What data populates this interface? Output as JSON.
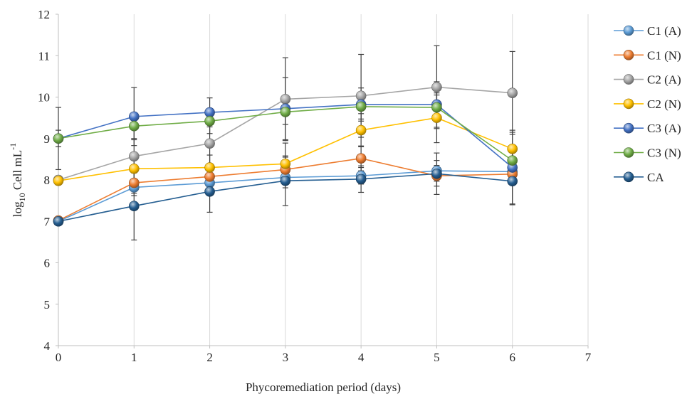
{
  "chart_data": {
    "type": "line",
    "xlabel": "Phycoremediation period (days)",
    "ylabel": {
      "base": "log",
      "sub": "10",
      "main": " Cell mL",
      "sup": "-1"
    },
    "xlim": [
      0,
      7
    ],
    "ylim": [
      4,
      12
    ],
    "x_ticks": [
      "0",
      "1",
      "2",
      "3",
      "4",
      "5",
      "6",
      "7"
    ],
    "y_ticks": [
      "4",
      "5",
      "6",
      "7",
      "8",
      "9",
      "10",
      "11",
      "12"
    ],
    "grid": "vertical",
    "legend_position": "right",
    "x": [
      0,
      1,
      2,
      3,
      4,
      5,
      6
    ],
    "series": [
      {
        "name": "C1 (A)",
        "color": "#5b9bd5",
        "values": [
          7.0,
          7.82,
          7.93,
          8.06,
          8.1,
          8.22,
          8.2
        ],
        "err": [
          0.05,
          0.2,
          0.2,
          0.25,
          0.2,
          0.25,
          0.2
        ]
      },
      {
        "name": "C1 (N)",
        "color": "#ed7d31",
        "values": [
          7.02,
          7.93,
          8.08,
          8.25,
          8.52,
          8.1,
          8.14
        ],
        "err": [
          0.05,
          0.25,
          0.25,
          0.3,
          0.3,
          0.25,
          0.25
        ]
      },
      {
        "name": "C2 (A)",
        "color": "#a5a5a5",
        "values": [
          8.0,
          8.57,
          8.88,
          9.95,
          10.03,
          10.24,
          10.1
        ],
        "err": [
          0.1,
          0.4,
          0.55,
          1.0,
          1.0,
          1.0,
          1.0
        ]
      },
      {
        "name": "C2 (N)",
        "color": "#ffc000",
        "values": [
          7.98,
          8.27,
          8.3,
          8.39,
          9.2,
          9.5,
          8.75
        ],
        "err": [
          0.1,
          0.25,
          0.3,
          0.5,
          0.4,
          0.6,
          0.4
        ]
      },
      {
        "name": "C3 (A)",
        "color": "#4472c4",
        "values": [
          9.0,
          9.53,
          9.63,
          9.72,
          9.82,
          9.82,
          8.3
        ],
        "err": [
          0.75,
          0.7,
          0.35,
          0.75,
          0.4,
          0.55,
          0.9
        ]
      },
      {
        "name": "C3 (N)",
        "color": "#70ad47",
        "values": [
          9.0,
          9.3,
          9.42,
          9.64,
          9.77,
          9.75,
          8.47
        ],
        "err": [
          0.2,
          0.3,
          0.3,
          0.3,
          0.3,
          0.3,
          0.3
        ]
      },
      {
        "name": "CA",
        "color": "#255e91",
        "values": [
          7.0,
          7.37,
          7.72,
          7.98,
          8.02,
          8.15,
          7.97
        ],
        "err": [
          0.05,
          0.82,
          0.5,
          0.6,
          0.32,
          0.5,
          0.55
        ]
      }
    ]
  }
}
